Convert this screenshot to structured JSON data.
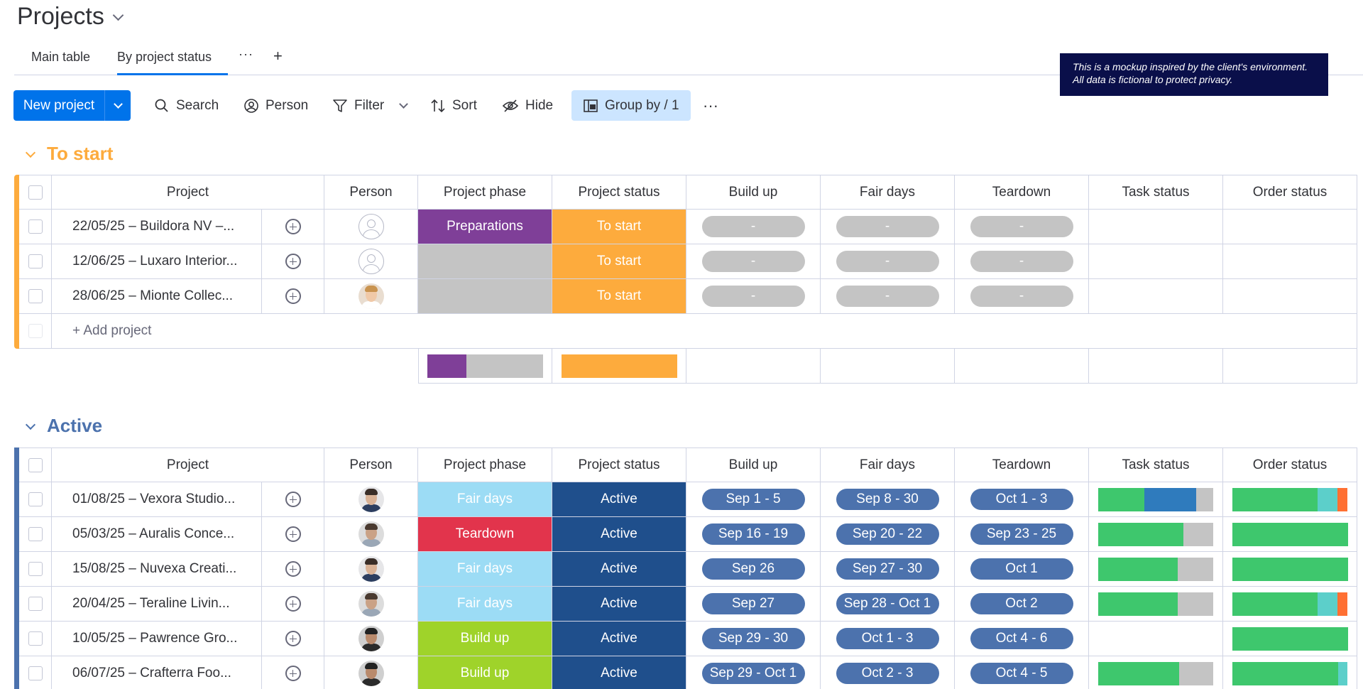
{
  "header": {
    "title": "Projects"
  },
  "tabs": [
    {
      "label": "Main table"
    },
    {
      "label": "By project status"
    }
  ],
  "notice": {
    "text": "This is a mockup inspired by the client's environment. All data is fictional to protect privacy."
  },
  "toolbar": {
    "new_label": "New project",
    "search_label": "Search",
    "person_label": "Person",
    "filter_label": "Filter",
    "sort_label": "Sort",
    "hide_label": "Hide",
    "group_label": "Group by / 1"
  },
  "columns": [
    "Project",
    "Person",
    "Project phase",
    "Project status",
    "Build up",
    "Fair days",
    "Teardown",
    "Task status",
    "Order status"
  ],
  "colors": {
    "to_start": "#fdab3d",
    "active": "#4c72ad",
    "active_status": "#1f4f8c",
    "preparations": "#7f3f98",
    "fair_days": "#9cdcf5",
    "teardown": "#e2344c",
    "build_up": "#9fd32a",
    "empty": "#c4c4c4",
    "done": "#3ec76d",
    "working": "#2f7bbd",
    "teal": "#5ccfca",
    "orange": "#ff7033"
  },
  "groups": {
    "to_start": {
      "title": "To start",
      "add_label": "+ Add project",
      "rows": [
        {
          "project": "22/05/25 – Buildora NV –...",
          "avatar": "empty",
          "phase": "Preparations",
          "status": "To start",
          "build": "-",
          "fair": "-",
          "teardown": "-"
        },
        {
          "project": "12/06/25 – Luxaro Interior...",
          "avatar": "empty",
          "phase": "",
          "status": "To start",
          "build": "-",
          "fair": "-",
          "teardown": "-"
        },
        {
          "project": "28/06/25 – Mionte Collec...",
          "avatar": "woman",
          "phase": "",
          "status": "To start",
          "build": "-",
          "fair": "-",
          "teardown": "-"
        }
      ],
      "summary": {
        "phase": [
          {
            "color": "#7f3f98",
            "frac": 0.34
          },
          {
            "color": "#c4c4c4",
            "frac": 0.66
          }
        ],
        "status": [
          {
            "color": "#fdab3d",
            "frac": 1
          }
        ]
      }
    },
    "active": {
      "title": "Active",
      "rows": [
        {
          "project": "01/08/25 – Vexora Studio...",
          "avatar": "man-suit",
          "phase": "Fair days",
          "status": "Active",
          "build": "Sep 1 - 5",
          "fair": "Sep 8 - 30",
          "teardown": "Oct 1 - 3",
          "task": [
            0.4,
            0.45,
            0.15
          ],
          "order": [
            0.74,
            0.17,
            0.09
          ]
        },
        {
          "project": "05/03/25 – Auralis Conce...",
          "avatar": "man-beard",
          "phase": "Teardown",
          "status": "Active",
          "build": "Sep 16 - 19",
          "fair": "Sep 20 - 22",
          "teardown": "Sep 23 - 25",
          "task": [
            0.74,
            0,
            0.26
          ],
          "order": [
            1,
            0,
            0
          ]
        },
        {
          "project": "15/08/25 – Nuvexa Creati...",
          "avatar": "man-suit",
          "phase": "Fair days",
          "status": "Active",
          "build": "Sep 26",
          "fair": "Sep 27 - 30",
          "teardown": "Oct 1",
          "task": [
            0.69,
            0,
            0.31
          ],
          "order": [
            1,
            0,
            0
          ]
        },
        {
          "project": "20/04/25 – Teraline Livin...",
          "avatar": "man-beard",
          "phase": "Fair days",
          "status": "Active",
          "build": "Sep 27",
          "fair": "Sep 28 - Oct 1",
          "teardown": "Oct 2",
          "task": [
            0.69,
            0,
            0.31
          ],
          "order": [
            0.74,
            0.17,
            0.09
          ]
        },
        {
          "project": "10/05/25 – Pawrence Gro...",
          "avatar": "man-dark",
          "phase": "Build up",
          "status": "Active",
          "build": "Sep 29 - 30",
          "fair": "Oct 1 - 3",
          "teardown": "Oct 4 - 6",
          "task": null,
          "order": [
            1,
            0,
            0
          ]
        },
        {
          "project": "06/07/25 – Crafterra Foo...",
          "avatar": "man-dark",
          "phase": "Build up",
          "status": "Active",
          "build": "Sep 29 - Oct 1",
          "fair": "Oct 2 - 3",
          "teardown": "Oct 4 - 5",
          "task": [
            0.7,
            0,
            0.3
          ],
          "order": [
            0.92,
            0.08,
            0
          ]
        }
      ]
    }
  }
}
